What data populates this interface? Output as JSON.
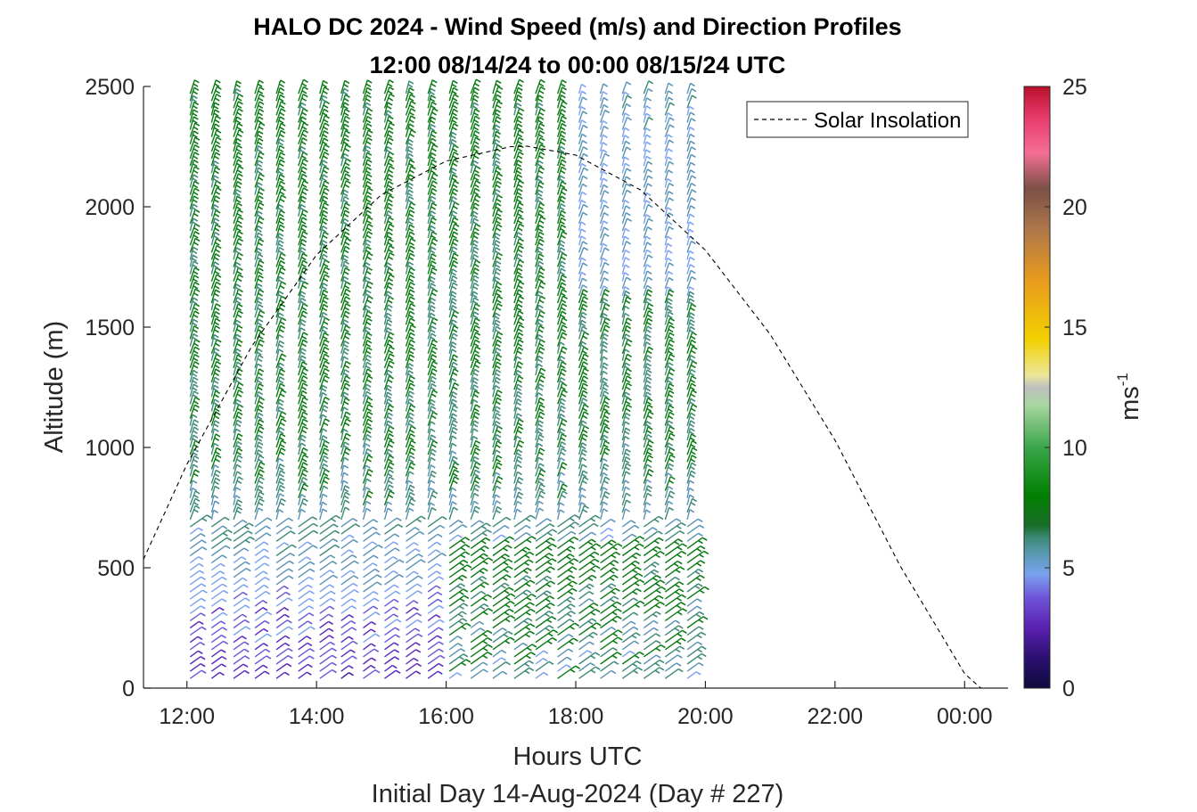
{
  "chart_data": {
    "type": "barbs",
    "title": [
      "HALO DC 2024 - Wind Speed (m/s) and Direction Profiles",
      "12:00 08/14/24 to 00:00 08/15/24  UTC"
    ],
    "xlabel": "Hours UTC",
    "xlabel2": "Initial Day 14-Aug-2024 (Day # 227)",
    "ylabel": "Altitude (m)",
    "xlim": [
      11.33,
      24.67
    ],
    "ylim": [
      0,
      2500
    ],
    "xticks": [
      12,
      14,
      16,
      18,
      20,
      22,
      24
    ],
    "xtick_labels": [
      "12:00",
      "14:00",
      "16:00",
      "18:00",
      "20:00",
      "22:00",
      "00:00"
    ],
    "yticks": [
      0,
      500,
      1000,
      1500,
      2000,
      2500
    ],
    "ytick_labels": [
      "0",
      "500",
      "1000",
      "1500",
      "2000",
      "2500"
    ],
    "colorbar": {
      "label": "ms",
      "label_sup": "-1",
      "ticks": [
        0,
        5,
        10,
        15,
        20,
        25
      ],
      "tick_labels": [
        "0",
        "5",
        "10",
        "15",
        "20",
        "25"
      ],
      "range": [
        0,
        25
      ]
    },
    "legend": {
      "placement": "top-right",
      "entries": [
        {
          "name": "Solar Insolation",
          "style": "dashed",
          "color": "#000000"
        }
      ]
    },
    "series": [
      {
        "name": "Solar Insolation",
        "kind": "curve",
        "x": [
          11.33,
          12,
          13,
          14,
          15,
          16,
          17,
          17.25,
          18,
          19,
          20,
          21,
          22,
          23,
          24,
          24.25,
          24.6
        ],
        "y": [
          535,
          930,
          1420,
          1800,
          2050,
          2190,
          2250,
          2252,
          2215,
          2070,
          1820,
          1470,
          1030,
          510,
          60,
          0,
          0
        ]
      }
    ],
    "barbs": {
      "times_hours": [
        12.05,
        12.38,
        12.72,
        13.05,
        13.38,
        13.72,
        14.05,
        14.38,
        14.72,
        15.05,
        15.38,
        15.72,
        16.05,
        16.38,
        16.72,
        17.05,
        17.38,
        17.72,
        18.05,
        18.38,
        18.72,
        19.05,
        19.38,
        19.72
      ],
      "altitude_start_m": 40,
      "altitude_step_m": 30,
      "altitude_end_m": 2470,
      "speed_profile_ms": [
        [
          0,
          2.5
        ],
        [
          300,
          3.5
        ],
        [
          600,
          5.0
        ],
        [
          1000,
          6.0
        ],
        [
          2500,
          6.5
        ]
      ],
      "direction_note": "predominantly westerly/southwesterly"
    }
  }
}
